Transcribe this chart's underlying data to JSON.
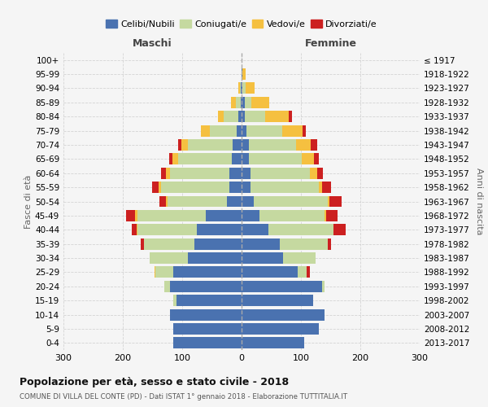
{
  "age_groups": [
    "0-4",
    "5-9",
    "10-14",
    "15-19",
    "20-24",
    "25-29",
    "30-34",
    "35-39",
    "40-44",
    "45-49",
    "50-54",
    "55-59",
    "60-64",
    "65-69",
    "70-74",
    "75-79",
    "80-84",
    "85-89",
    "90-94",
    "95-99",
    "100+"
  ],
  "birth_years": [
    "2013-2017",
    "2008-2012",
    "2003-2007",
    "1998-2002",
    "1993-1997",
    "1988-1992",
    "1983-1987",
    "1978-1982",
    "1973-1977",
    "1968-1972",
    "1963-1967",
    "1958-1962",
    "1953-1957",
    "1948-1952",
    "1943-1947",
    "1938-1942",
    "1933-1937",
    "1928-1932",
    "1923-1927",
    "1918-1922",
    "≤ 1917"
  ],
  "colors": {
    "celibi": "#4a72b0",
    "coniugati": "#c5d9a0",
    "vedovi": "#f5c040",
    "divorziati": "#cc2020"
  },
  "maschi": {
    "celibi": [
      115,
      115,
      120,
      110,
      120,
      115,
      90,
      80,
      75,
      60,
      25,
      20,
      20,
      17,
      15,
      8,
      5,
      2,
      1,
      0,
      0
    ],
    "coniugati": [
      0,
      0,
      0,
      5,
      10,
      30,
      65,
      85,
      100,
      115,
      100,
      115,
      100,
      90,
      75,
      45,
      25,
      8,
      2,
      0,
      0
    ],
    "vedovi": [
      0,
      0,
      0,
      0,
      0,
      2,
      0,
      0,
      2,
      5,
      3,
      5,
      8,
      10,
      12,
      15,
      10,
      8,
      2,
      0,
      0
    ],
    "divorziati": [
      0,
      0,
      0,
      0,
      0,
      0,
      0,
      5,
      8,
      15,
      10,
      10,
      8,
      5,
      5,
      0,
      0,
      0,
      0,
      0,
      0
    ]
  },
  "femmine": {
    "celibi": [
      105,
      130,
      140,
      120,
      135,
      95,
      70,
      65,
      45,
      30,
      20,
      15,
      15,
      12,
      12,
      8,
      5,
      5,
      2,
      2,
      0
    ],
    "coniugati": [
      0,
      0,
      0,
      0,
      5,
      15,
      55,
      80,
      110,
      110,
      125,
      115,
      100,
      90,
      80,
      60,
      35,
      12,
      5,
      0,
      0
    ],
    "vedovi": [
      0,
      0,
      0,
      0,
      0,
      0,
      0,
      0,
      0,
      2,
      3,
      5,
      12,
      20,
      25,
      35,
      40,
      30,
      15,
      5,
      0
    ],
    "divorziati": [
      0,
      0,
      0,
      0,
      0,
      5,
      0,
      5,
      20,
      20,
      20,
      15,
      10,
      8,
      10,
      5,
      5,
      0,
      0,
      0,
      0
    ]
  },
  "title": "Popolazione per età, sesso e stato civile - 2018",
  "subtitle": "COMUNE DI VILLA DEL CONTE (PD) - Dati ISTAT 1° gennaio 2018 - Elaborazione TUTTITALIA.IT",
  "xlabel_left": "Maschi",
  "xlabel_right": "Femmine",
  "ylabel_left": "Fasce di età",
  "ylabel_right": "Anni di nascita",
  "xlim": 300,
  "bar_height": 0.8,
  "bg_color": "#f5f5f5",
  "grid_color": "#cccccc",
  "legend_labels": [
    "Celibi/Nubili",
    "Coniugati/e",
    "Vedovi/e",
    "Divorziati/e"
  ]
}
